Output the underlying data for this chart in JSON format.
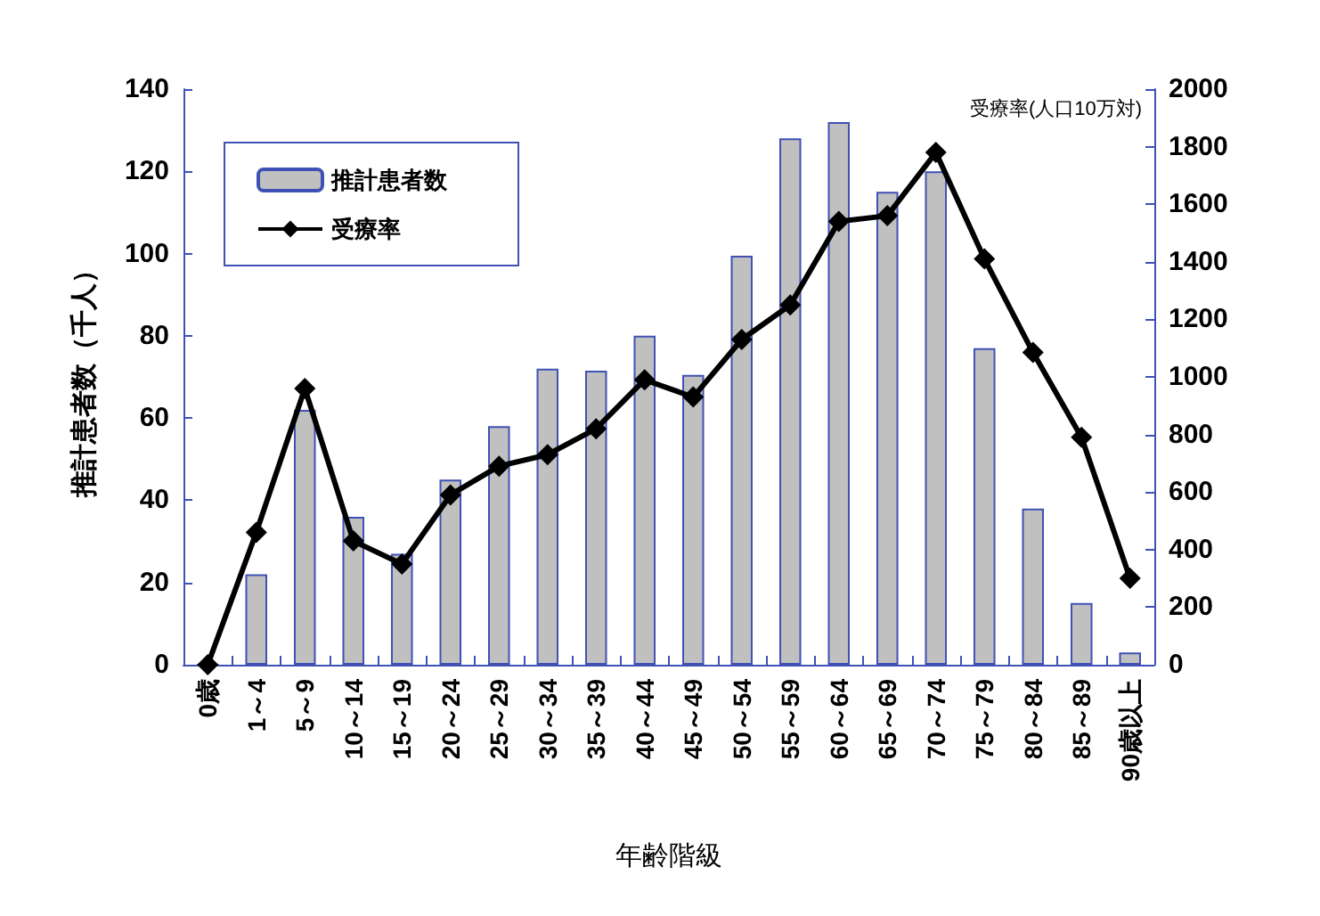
{
  "chart_data": {
    "type": "bar",
    "xlabel": "年齢階級",
    "ylabel": "推計患者数（千人）",
    "y2label": "受療率(人口10万対)",
    "categories": [
      "0歳",
      "1～4",
      "5～9",
      "10～14",
      "15～19",
      "20～24",
      "25～29",
      "30～34",
      "35～39",
      "40～44",
      "45～49",
      "50～54",
      "55～59",
      "60～64",
      "65～69",
      "70～74",
      "75～79",
      "80～84",
      "85～89",
      "90歳以上"
    ],
    "series": [
      {
        "name": "推計患者数",
        "color": "#c0c0c0",
        "values": [
          0,
          22,
          62,
          36,
          27,
          45,
          58,
          72,
          71.5,
          80,
          70.5,
          99.5,
          128,
          132,
          115,
          120,
          77,
          38,
          15,
          3
        ]
      },
      {
        "name": "受療率",
        "type": "line",
        "axis": "y2",
        "color": "#000000",
        "values": [
          0,
          460,
          960,
          430,
          350,
          590,
          690,
          730,
          820,
          990,
          930,
          1130,
          1250,
          1540,
          1560,
          1780,
          1410,
          1085,
          790,
          300
        ]
      }
    ],
    "ylim": [
      0,
      140
    ],
    "yticks": [
      0,
      20,
      40,
      60,
      80,
      100,
      120,
      140
    ],
    "y2lim": [
      0,
      2000
    ],
    "y2ticks": [
      0,
      200,
      400,
      600,
      800,
      1000,
      1200,
      1400,
      1600,
      1800,
      2000
    ],
    "grid": false,
    "legend": "top left",
    "marker": "diamond",
    "line_style": "solid"
  }
}
